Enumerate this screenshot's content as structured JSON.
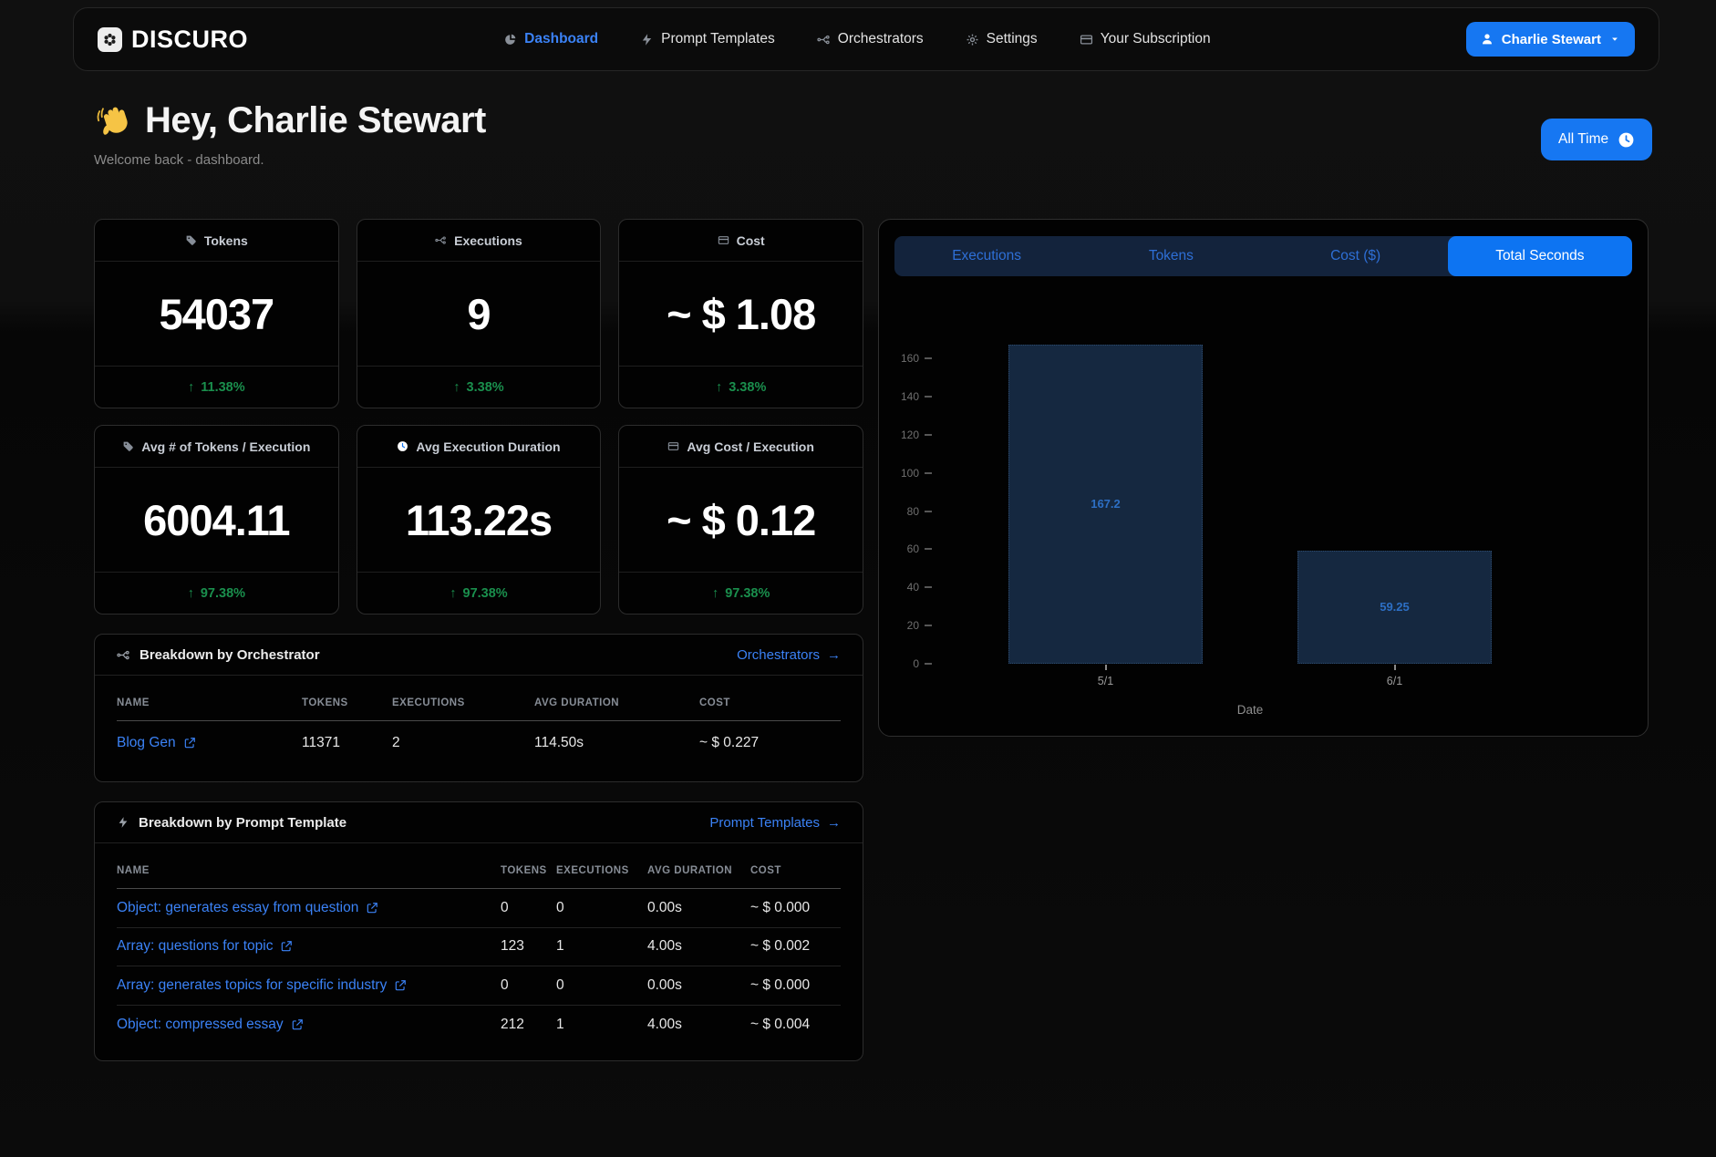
{
  "brand": {
    "name": "DISCURO",
    "icon": "flower-icon"
  },
  "nav": {
    "items": [
      {
        "label": "Dashboard",
        "icon": "pie-chart-icon",
        "active": true
      },
      {
        "label": "Prompt Templates",
        "icon": "lightning-icon",
        "active": false
      },
      {
        "label": "Orchestrators",
        "icon": "git-branch-icon",
        "active": false
      },
      {
        "label": "Settings",
        "icon": "gear-icon",
        "active": false
      },
      {
        "label": "Your Subscription",
        "icon": "credit-card-icon",
        "active": false
      }
    ],
    "user_button": {
      "label": "Charlie Stewart",
      "icon": "person-icon",
      "caret": "caret-down-icon"
    }
  },
  "header": {
    "wave_icon": "waving-hand-icon",
    "greeting": "Hey, Charlie Stewart",
    "subtitle": "Welcome back - dashboard.",
    "time_filter": {
      "label": "All Time",
      "icon": "clock-icon"
    }
  },
  "symbols": {
    "up_arrow": "↑",
    "link_arrow": "→"
  },
  "stats": [
    {
      "label": "Tokens",
      "icon": "tag-icon",
      "value": "54037",
      "delta": "11.38%",
      "direction": "up"
    },
    {
      "label": "Executions",
      "icon": "git-branch-icon",
      "value": "9",
      "delta": "3.38%",
      "direction": "up"
    },
    {
      "label": "Cost",
      "icon": "credit-card-icon",
      "value": "~ $ 1.08",
      "delta": "3.38%",
      "direction": "up"
    },
    {
      "label": "Avg # of Tokens / Execution",
      "icon": "tag-icon",
      "value": "6004.11",
      "delta": "97.38%",
      "direction": "up"
    },
    {
      "label": "Avg Execution Duration",
      "icon": "clock-icon",
      "value": "113.22s",
      "delta": "97.38%",
      "direction": "up"
    },
    {
      "label": "Avg Cost / Execution",
      "icon": "credit-card-icon",
      "value": "~ $ 0.12",
      "delta": "97.38%",
      "direction": "up"
    }
  ],
  "orchestrator_panel": {
    "icon": "git-branch-icon",
    "title": "Breakdown by Orchestrator",
    "link_label": "Orchestrators",
    "columns": [
      "NAME",
      "TOKENS",
      "EXECUTIONS",
      "AVG DURATION",
      "COST"
    ],
    "rows": [
      {
        "name": "Blog Gen",
        "tokens": "11371",
        "executions": "2",
        "avg_duration": "114.50s",
        "cost": "~ $ 0.227"
      }
    ]
  },
  "template_panel": {
    "icon": "lightning-icon",
    "title": "Breakdown by Prompt Template",
    "link_label": "Prompt Templates",
    "columns": [
      "NAME",
      "TOKENS",
      "EXECUTIONS",
      "AVG DURATION",
      "COST"
    ],
    "rows": [
      {
        "name": "Object: generates essay from question",
        "tokens": "0",
        "executions": "0",
        "avg_duration": "0.00s",
        "cost": "~ $ 0.000"
      },
      {
        "name": "Array: questions for topic",
        "tokens": "123",
        "executions": "1",
        "avg_duration": "4.00s",
        "cost": "~ $ 0.002"
      },
      {
        "name": "Array: generates topics for specific industry",
        "tokens": "0",
        "executions": "0",
        "avg_duration": "0.00s",
        "cost": "~ $ 0.000"
      },
      {
        "name": "Object: compressed essay",
        "tokens": "212",
        "executions": "1",
        "avg_duration": "4.00s",
        "cost": "~ $ 0.004"
      }
    ]
  },
  "chart_panel": {
    "tabs": [
      {
        "label": "Executions",
        "active": false
      },
      {
        "label": "Tokens",
        "active": false
      },
      {
        "label": "Cost ($)",
        "active": false
      },
      {
        "label": "Total Seconds",
        "active": true
      }
    ]
  },
  "chart_data": {
    "type": "bar",
    "x": [
      "5/1",
      "6/1"
    ],
    "series": [
      {
        "name": "Total Seconds",
        "values": [
          167.2,
          59.25
        ]
      }
    ],
    "value_labels": [
      "167.2",
      "59.25"
    ],
    "title": "",
    "xlabel": "Date",
    "ylabel": "",
    "ylim": [
      0,
      175
    ],
    "yticks": [
      0,
      20,
      40,
      60,
      80,
      100,
      120,
      140,
      160
    ],
    "grid": false,
    "legend": "none",
    "bar_color": "#152840",
    "bar_border_color": "#2c4a6e",
    "value_label_color": "#2d6fc4"
  },
  "colors": {
    "accent_blue": "#1677f2",
    "link_blue": "#3b82f6",
    "positive_green": "#1a8f4d",
    "tab_bar_navy": "#13233c",
    "active_tab_blue": "#0d74f2"
  }
}
